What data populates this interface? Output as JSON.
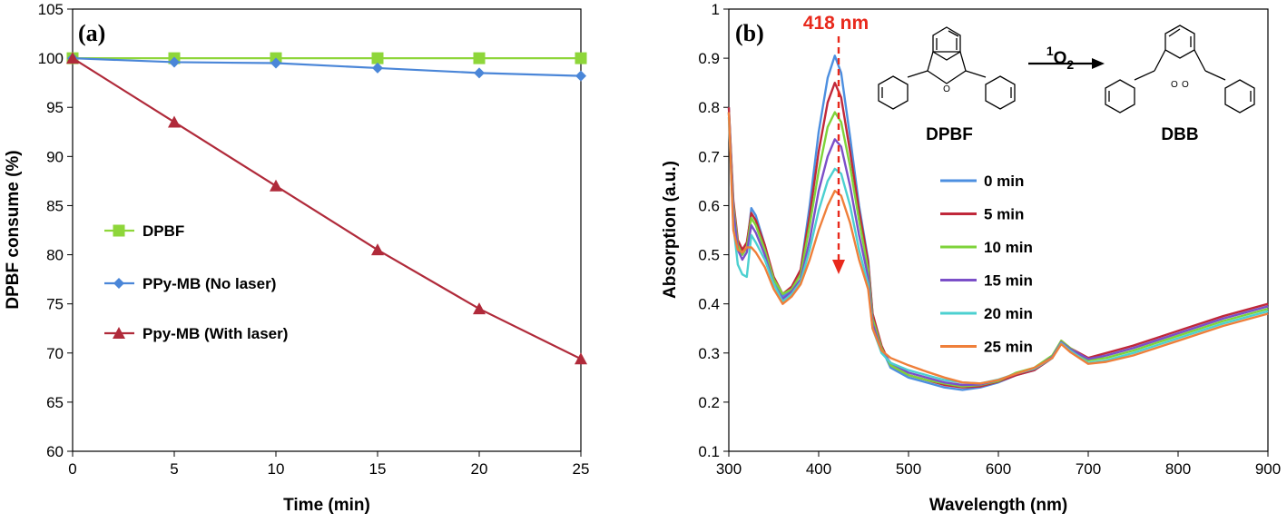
{
  "chart_data": [
    {
      "panel": "(a)",
      "type": "line",
      "xlabel": "Time (min)",
      "ylabel": "DPBF consume (%)",
      "xlim": [
        0,
        25
      ],
      "ylim": [
        60,
        105
      ],
      "x_ticks": [
        "0",
        "5",
        "10",
        "15",
        "20",
        "25"
      ],
      "y_ticks": [
        "60",
        "65",
        "70",
        "75",
        "80",
        "85",
        "90",
        "95",
        "100",
        "105"
      ],
      "legend_position": "center-left",
      "series": [
        {
          "name": "DPBF",
          "color": "#8ed63a",
          "marker": "square",
          "x": [
            0,
            5,
            10,
            15,
            20,
            25
          ],
          "y": [
            100,
            100,
            100,
            100,
            100,
            100
          ]
        },
        {
          "name": "PPy-MB (No laser)",
          "color": "#4a86d8",
          "marker": "diamond",
          "x": [
            0,
            5,
            10,
            15,
            20,
            25
          ],
          "y": [
            100,
            99.6,
            99.5,
            99,
            98.5,
            98.2
          ]
        },
        {
          "name": "Ppy-MB (With laser)",
          "color": "#b02a3a",
          "marker": "triangle",
          "x": [
            0,
            5,
            10,
            15,
            20,
            25
          ],
          "y": [
            100,
            93.5,
            87,
            80.5,
            74.5,
            69.4
          ]
        }
      ]
    },
    {
      "panel": "(b)",
      "type": "line",
      "xlabel": "Wavelength (nm)",
      "ylabel": "Absorption (a.u.)",
      "xlim": [
        300,
        900
      ],
      "ylim": [
        0.1,
        1
      ],
      "x_ticks": [
        "300",
        "400",
        "500",
        "600",
        "700",
        "800",
        "900"
      ],
      "y_ticks": [
        "0.1",
        "0.2",
        "0.3",
        "0.4",
        "0.5",
        "0.6",
        "0.7",
        "0.8",
        "0.9",
        "1"
      ],
      "legend_position": "upper-right",
      "annotation": "418 nm",
      "reaction": {
        "reactant": "DPBF",
        "reagent": "1O2",
        "product": "DBB"
      },
      "x": [
        300,
        305,
        310,
        315,
        320,
        325,
        330,
        340,
        350,
        360,
        370,
        380,
        390,
        400,
        410,
        418,
        425,
        435,
        445,
        455,
        460,
        470,
        480,
        500,
        520,
        540,
        560,
        580,
        600,
        620,
        640,
        660,
        670,
        680,
        700,
        720,
        750,
        800,
        850,
        900
      ],
      "series": [
        {
          "name": "0 min",
          "color": "#4c8fe0",
          "y": [
            0.8,
            0.6,
            0.52,
            0.5,
            0.515,
            0.595,
            0.58,
            0.52,
            0.45,
            0.415,
            0.43,
            0.47,
            0.6,
            0.75,
            0.86,
            0.905,
            0.87,
            0.74,
            0.6,
            0.49,
            0.38,
            0.31,
            0.27,
            0.25,
            0.24,
            0.23,
            0.225,
            0.23,
            0.24,
            0.255,
            0.265,
            0.29,
            0.32,
            0.305,
            0.285,
            0.295,
            0.31,
            0.34,
            0.37,
            0.395
          ]
        },
        {
          "name": "5 min",
          "color": "#c0283a",
          "y": [
            0.8,
            0.61,
            0.53,
            0.51,
            0.525,
            0.585,
            0.57,
            0.52,
            0.455,
            0.42,
            0.435,
            0.47,
            0.58,
            0.71,
            0.81,
            0.85,
            0.82,
            0.71,
            0.59,
            0.485,
            0.38,
            0.315,
            0.275,
            0.255,
            0.245,
            0.235,
            0.23,
            0.232,
            0.242,
            0.255,
            0.265,
            0.29,
            0.325,
            0.31,
            0.29,
            0.3,
            0.315,
            0.345,
            0.375,
            0.4
          ]
        },
        {
          "name": "10 min",
          "color": "#7ed33a",
          "y": [
            0.79,
            0.6,
            0.52,
            0.5,
            0.515,
            0.575,
            0.56,
            0.51,
            0.45,
            0.42,
            0.43,
            0.46,
            0.56,
            0.67,
            0.76,
            0.79,
            0.77,
            0.68,
            0.57,
            0.47,
            0.37,
            0.31,
            0.275,
            0.255,
            0.245,
            0.238,
            0.232,
            0.235,
            0.243,
            0.26,
            0.27,
            0.295,
            0.325,
            0.31,
            0.285,
            0.29,
            0.305,
            0.335,
            0.365,
            0.39
          ]
        },
        {
          "name": "15  min",
          "color": "#7b4fc8",
          "y": [
            0.79,
            0.59,
            0.51,
            0.49,
            0.505,
            0.56,
            0.545,
            0.5,
            0.44,
            0.41,
            0.425,
            0.45,
            0.53,
            0.63,
            0.7,
            0.735,
            0.72,
            0.64,
            0.54,
            0.455,
            0.36,
            0.305,
            0.28,
            0.26,
            0.25,
            0.24,
            0.235,
            0.236,
            0.245,
            0.258,
            0.268,
            0.292,
            0.322,
            0.308,
            0.288,
            0.295,
            0.31,
            0.34,
            0.37,
            0.395
          ]
        },
        {
          "name": "20 min",
          "color": "#4cd0d0",
          "y": [
            0.78,
            0.56,
            0.48,
            0.46,
            0.455,
            0.54,
            0.525,
            0.49,
            0.44,
            0.405,
            0.42,
            0.445,
            0.51,
            0.59,
            0.65,
            0.675,
            0.665,
            0.6,
            0.51,
            0.44,
            0.35,
            0.3,
            0.28,
            0.265,
            0.255,
            0.245,
            0.24,
            0.238,
            0.246,
            0.258,
            0.268,
            0.29,
            0.32,
            0.305,
            0.28,
            0.285,
            0.3,
            0.33,
            0.36,
            0.385
          ]
        },
        {
          "name": "25 min",
          "color": "#ef7f3a",
          "y": [
            0.79,
            0.55,
            0.51,
            0.505,
            0.515,
            0.515,
            0.505,
            0.475,
            0.43,
            0.4,
            0.415,
            0.44,
            0.49,
            0.55,
            0.6,
            0.63,
            0.62,
            0.565,
            0.49,
            0.43,
            0.35,
            0.305,
            0.29,
            0.275,
            0.262,
            0.25,
            0.24,
            0.238,
            0.245,
            0.258,
            0.27,
            0.29,
            0.318,
            0.302,
            0.278,
            0.282,
            0.295,
            0.325,
            0.355,
            0.38
          ]
        }
      ]
    }
  ]
}
